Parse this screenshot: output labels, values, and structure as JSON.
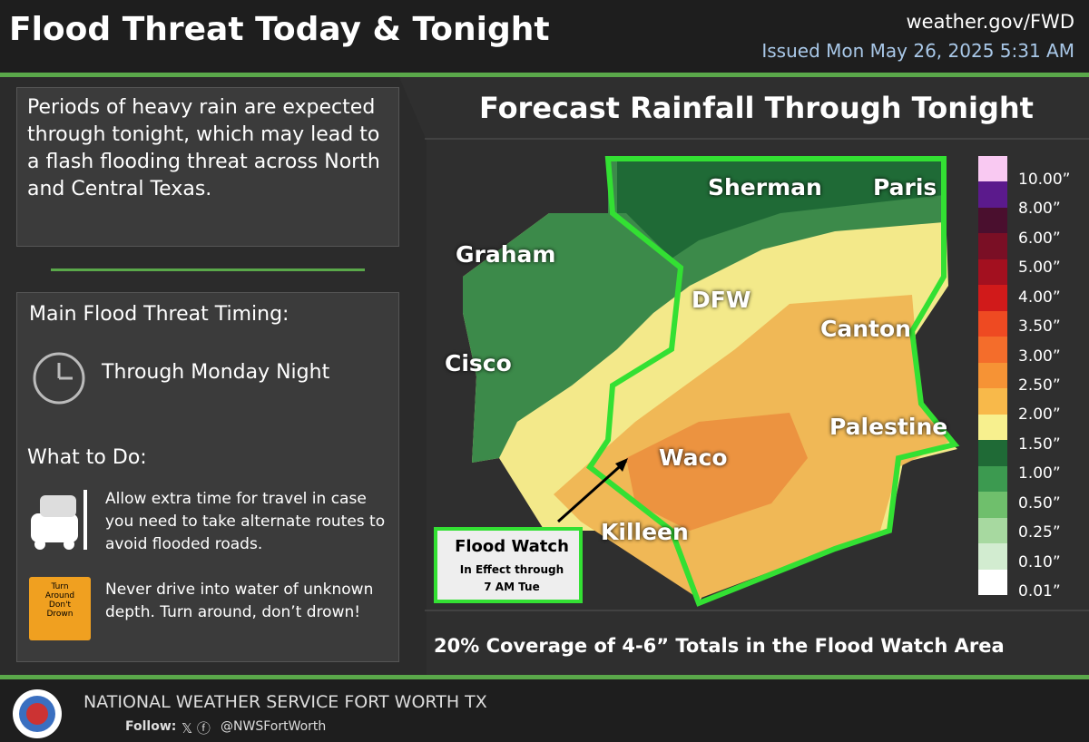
{
  "header": {
    "title": "Flood Threat Today & Tonight",
    "site": "weather.gov/FWD",
    "issued": "Issued Mon May 26, 2025 5:31 AM"
  },
  "left": {
    "intro": "Periods of heavy rain are expected through tonight, which may lead to a flash flooding threat across North and Central Texas.",
    "timing_heading": "Main Flood Threat Timing:",
    "timing": "Through Monday Night",
    "todo_heading": "What to Do:",
    "actions": [
      "Allow extra time for travel in case you need to take alternate routes to avoid flooded roads.",
      "Never drive into water of unknown depth. Turn around, don’t drown!"
    ],
    "sign": [
      "Turn",
      "Around",
      "Don't",
      "Drown"
    ]
  },
  "map": {
    "title": "Forecast Rainfall Through Tonight",
    "cities": [
      "Sherman",
      "Paris",
      "Graham",
      "DFW",
      "Canton",
      "Cisco",
      "Waco",
      "Palestine",
      "Killeen"
    ],
    "watch": {
      "title": "Flood Watch",
      "lines": [
        "In Effect through",
        "7 AM Tue"
      ]
    },
    "legend": [
      "10.00”",
      "8.00”",
      "6.00”",
      "5.00”",
      "4.00”",
      "3.50”",
      "3.00”",
      "2.50”",
      "2.00”",
      "1.50”",
      "1.00”",
      "0.50”",
      "0.25”",
      "0.10”",
      "0.01”"
    ],
    "note": "20% Coverage of 4-6” Totals in the Flood Watch Area"
  },
  "footer": {
    "org": "NATIONAL WEATHER SERVICE FORT WORTH TX",
    "follow": "Follow:",
    "handle": "@NWSFortWorth"
  }
}
